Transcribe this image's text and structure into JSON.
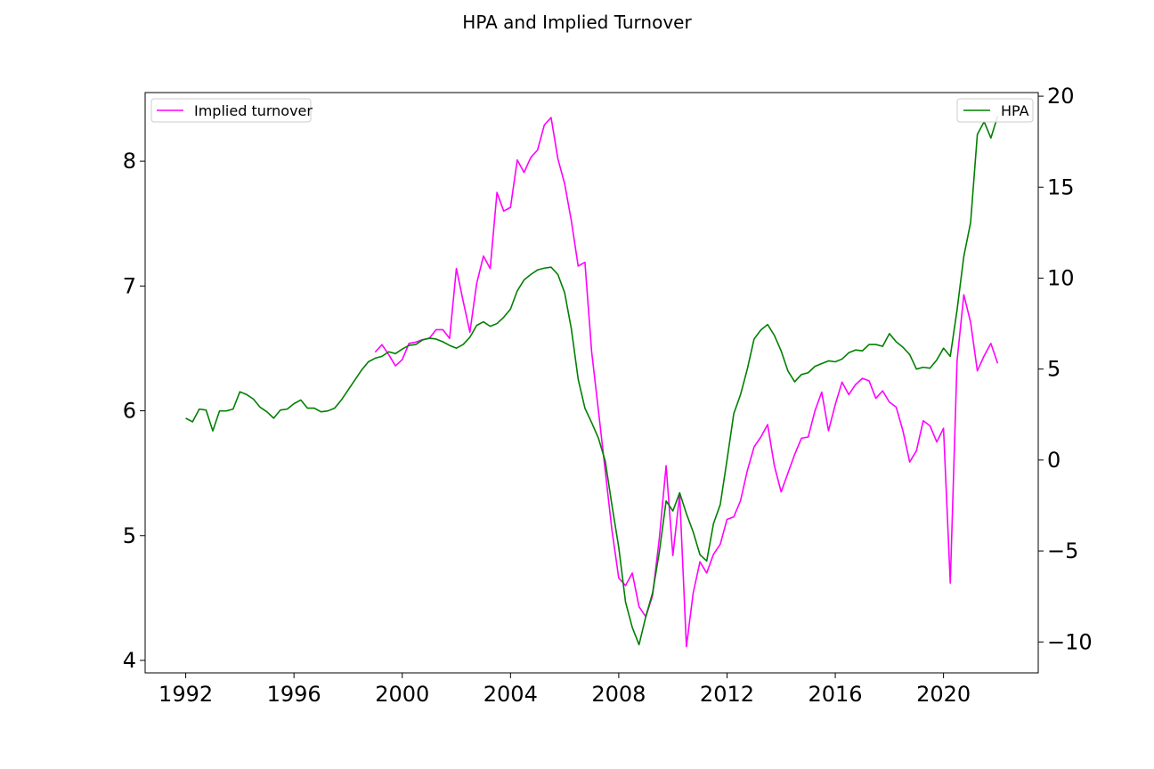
{
  "chart_data": {
    "type": "line",
    "title": "HPA and Implied Turnover",
    "xlabel": "",
    "ylabel_left": "",
    "ylabel_right": "",
    "x_ticks": [
      "1992",
      "1996",
      "2000",
      "2004",
      "2008",
      "2012",
      "2016",
      "2020"
    ],
    "y_left_ticks": [
      "4",
      "5",
      "6",
      "7",
      "8"
    ],
    "y_right_ticks": [
      "−10",
      "−5",
      "0",
      "5",
      "10",
      "15",
      "20"
    ],
    "x_range": [
      1990.5,
      2023.5
    ],
    "y_left_range": [
      3.9,
      8.55
    ],
    "y_right_range": [
      -11.7,
      20.2
    ],
    "grid": false,
    "series": [
      {
        "name": "Implied turnover",
        "axis": "left",
        "color": "#ff00ff",
        "legend_position": "top-left",
        "points": [
          [
            1999.0,
            6.47
          ],
          [
            1999.25,
            6.53
          ],
          [
            1999.5,
            6.45
          ],
          [
            1999.75,
            6.36
          ],
          [
            2000.0,
            6.41
          ],
          [
            2000.25,
            6.54
          ],
          [
            2000.5,
            6.55
          ],
          [
            2000.75,
            6.57
          ],
          [
            2001.0,
            6.58
          ],
          [
            2001.25,
            6.65
          ],
          [
            2001.5,
            6.65
          ],
          [
            2001.75,
            6.58
          ],
          [
            2002.0,
            7.14
          ],
          [
            2002.25,
            6.88
          ],
          [
            2002.5,
            6.63
          ],
          [
            2002.75,
            7.02
          ],
          [
            2003.0,
            7.24
          ],
          [
            2003.25,
            7.14
          ],
          [
            2003.5,
            7.75
          ],
          [
            2003.75,
            7.6
          ],
          [
            2004.0,
            7.63
          ],
          [
            2004.25,
            8.01
          ],
          [
            2004.5,
            7.91
          ],
          [
            2004.75,
            8.03
          ],
          [
            2005.0,
            8.09
          ],
          [
            2005.25,
            8.29
          ],
          [
            2005.5,
            8.35
          ],
          [
            2005.75,
            8.02
          ],
          [
            2006.0,
            7.82
          ],
          [
            2006.25,
            7.52
          ],
          [
            2006.5,
            7.16
          ],
          [
            2006.75,
            7.19
          ],
          [
            2007.0,
            6.47
          ],
          [
            2007.25,
            6.0
          ],
          [
            2007.5,
            5.52
          ],
          [
            2007.75,
            5.04
          ],
          [
            2008.0,
            4.66
          ],
          [
            2008.25,
            4.6
          ],
          [
            2008.5,
            4.7
          ],
          [
            2008.75,
            4.43
          ],
          [
            2009.0,
            4.35
          ],
          [
            2009.25,
            4.52
          ],
          [
            2009.5,
            4.98
          ],
          [
            2009.75,
            5.56
          ],
          [
            2010.0,
            4.84
          ],
          [
            2010.25,
            5.33
          ],
          [
            2010.5,
            4.11
          ],
          [
            2010.75,
            4.54
          ],
          [
            2011.0,
            4.79
          ],
          [
            2011.25,
            4.7
          ],
          [
            2011.5,
            4.85
          ],
          [
            2011.75,
            4.93
          ],
          [
            2012.0,
            5.13
          ],
          [
            2012.25,
            5.15
          ],
          [
            2012.5,
            5.28
          ],
          [
            2012.75,
            5.52
          ],
          [
            2013.0,
            5.71
          ],
          [
            2013.25,
            5.79
          ],
          [
            2013.5,
            5.89
          ],
          [
            2013.75,
            5.56
          ],
          [
            2014.0,
            5.35
          ],
          [
            2014.25,
            5.5
          ],
          [
            2014.5,
            5.65
          ],
          [
            2014.75,
            5.78
          ],
          [
            2015.0,
            5.79
          ],
          [
            2015.25,
            6.0
          ],
          [
            2015.5,
            6.15
          ],
          [
            2015.75,
            5.84
          ],
          [
            2016.0,
            6.05
          ],
          [
            2016.25,
            6.23
          ],
          [
            2016.5,
            6.13
          ],
          [
            2016.75,
            6.21
          ],
          [
            2017.0,
            6.26
          ],
          [
            2017.25,
            6.24
          ],
          [
            2017.5,
            6.1
          ],
          [
            2017.75,
            6.16
          ],
          [
            2018.0,
            6.07
          ],
          [
            2018.25,
            6.03
          ],
          [
            2018.5,
            5.84
          ],
          [
            2018.75,
            5.59
          ],
          [
            2019.0,
            5.68
          ],
          [
            2019.25,
            5.92
          ],
          [
            2019.5,
            5.88
          ],
          [
            2019.75,
            5.75
          ],
          [
            2020.0,
            5.86
          ],
          [
            2020.25,
            4.62
          ],
          [
            2020.5,
            6.4
          ],
          [
            2020.75,
            6.93
          ],
          [
            2021.0,
            6.71
          ],
          [
            2021.25,
            6.32
          ],
          [
            2021.5,
            6.44
          ],
          [
            2021.75,
            6.54
          ],
          [
            2022.0,
            6.38
          ]
        ]
      },
      {
        "name": "HPA",
        "axis": "right",
        "color": "#008000",
        "legend_position": "top-right",
        "points": [
          [
            1992.0,
            2.3
          ],
          [
            1992.25,
            2.1
          ],
          [
            1992.5,
            2.8
          ],
          [
            1992.75,
            2.75
          ],
          [
            1993.0,
            1.6
          ],
          [
            1993.25,
            2.7
          ],
          [
            1993.5,
            2.7
          ],
          [
            1993.75,
            2.8
          ],
          [
            1994.0,
            3.75
          ],
          [
            1994.25,
            3.6
          ],
          [
            1994.5,
            3.35
          ],
          [
            1994.75,
            2.9
          ],
          [
            1995.0,
            2.65
          ],
          [
            1995.25,
            2.3
          ],
          [
            1995.5,
            2.75
          ],
          [
            1995.75,
            2.8
          ],
          [
            1996.0,
            3.1
          ],
          [
            1996.25,
            3.3
          ],
          [
            1996.5,
            2.85
          ],
          [
            1996.75,
            2.85
          ],
          [
            1997.0,
            2.65
          ],
          [
            1997.25,
            2.7
          ],
          [
            1997.5,
            2.85
          ],
          [
            1997.75,
            3.3
          ],
          [
            1998.0,
            3.85
          ],
          [
            1998.25,
            4.4
          ],
          [
            1998.5,
            4.95
          ],
          [
            1998.75,
            5.4
          ],
          [
            1999.0,
            5.6
          ],
          [
            1999.25,
            5.7
          ],
          [
            1999.5,
            5.95
          ],
          [
            1999.75,
            5.85
          ],
          [
            2000.0,
            6.1
          ],
          [
            2000.25,
            6.3
          ],
          [
            2000.5,
            6.35
          ],
          [
            2000.75,
            6.6
          ],
          [
            2001.0,
            6.7
          ],
          [
            2001.25,
            6.65
          ],
          [
            2001.5,
            6.5
          ],
          [
            2001.75,
            6.3
          ],
          [
            2002.0,
            6.15
          ],
          [
            2002.25,
            6.35
          ],
          [
            2002.5,
            6.75
          ],
          [
            2002.75,
            7.4
          ],
          [
            2003.0,
            7.6
          ],
          [
            2003.25,
            7.35
          ],
          [
            2003.5,
            7.5
          ],
          [
            2003.75,
            7.85
          ],
          [
            2004.0,
            8.3
          ],
          [
            2004.25,
            9.3
          ],
          [
            2004.5,
            9.9
          ],
          [
            2004.75,
            10.2
          ],
          [
            2005.0,
            10.45
          ],
          [
            2005.25,
            10.55
          ],
          [
            2005.5,
            10.6
          ],
          [
            2005.75,
            10.2
          ],
          [
            2006.0,
            9.2
          ],
          [
            2006.25,
            7.2
          ],
          [
            2006.5,
            4.45
          ],
          [
            2006.75,
            2.85
          ],
          [
            2007.0,
            2.05
          ],
          [
            2007.25,
            1.2
          ],
          [
            2007.5,
            -0.05
          ],
          [
            2007.75,
            -2.5
          ],
          [
            2008.0,
            -4.8
          ],
          [
            2008.25,
            -7.8
          ],
          [
            2008.5,
            -9.2
          ],
          [
            2008.75,
            -10.15
          ],
          [
            2009.0,
            -8.6
          ],
          [
            2009.25,
            -7.3
          ],
          [
            2009.5,
            -5.05
          ],
          [
            2009.75,
            -2.25
          ],
          [
            2010.0,
            -2.8
          ],
          [
            2010.25,
            -1.8
          ],
          [
            2010.5,
            -2.95
          ],
          [
            2010.75,
            -3.95
          ],
          [
            2011.0,
            -5.2
          ],
          [
            2011.25,
            -5.55
          ],
          [
            2011.5,
            -3.5
          ],
          [
            2011.75,
            -2.45
          ],
          [
            2012.0,
            0.0
          ],
          [
            2012.25,
            2.55
          ],
          [
            2012.5,
            3.6
          ],
          [
            2012.75,
            5.0
          ],
          [
            2013.0,
            6.65
          ],
          [
            2013.25,
            7.15
          ],
          [
            2013.5,
            7.45
          ],
          [
            2013.75,
            6.85
          ],
          [
            2014.0,
            6.0
          ],
          [
            2014.25,
            4.9
          ],
          [
            2014.5,
            4.3
          ],
          [
            2014.75,
            4.7
          ],
          [
            2015.0,
            4.8
          ],
          [
            2015.25,
            5.15
          ],
          [
            2015.5,
            5.3
          ],
          [
            2015.75,
            5.45
          ],
          [
            2016.0,
            5.4
          ],
          [
            2016.25,
            5.55
          ],
          [
            2016.5,
            5.9
          ],
          [
            2016.75,
            6.05
          ],
          [
            2017.0,
            6.0
          ],
          [
            2017.25,
            6.35
          ],
          [
            2017.5,
            6.35
          ],
          [
            2017.75,
            6.25
          ],
          [
            2018.0,
            6.95
          ],
          [
            2018.25,
            6.5
          ],
          [
            2018.5,
            6.2
          ],
          [
            2018.75,
            5.8
          ],
          [
            2019.0,
            5.0
          ],
          [
            2019.25,
            5.1
          ],
          [
            2019.5,
            5.05
          ],
          [
            2019.75,
            5.5
          ],
          [
            2020.0,
            6.15
          ],
          [
            2020.25,
            5.7
          ],
          [
            2020.5,
            8.25
          ],
          [
            2020.75,
            11.2
          ],
          [
            2021.0,
            13.05
          ],
          [
            2021.25,
            17.9
          ],
          [
            2021.5,
            18.6
          ],
          [
            2021.75,
            17.7
          ],
          [
            2022.0,
            18.9
          ]
        ]
      }
    ]
  }
}
